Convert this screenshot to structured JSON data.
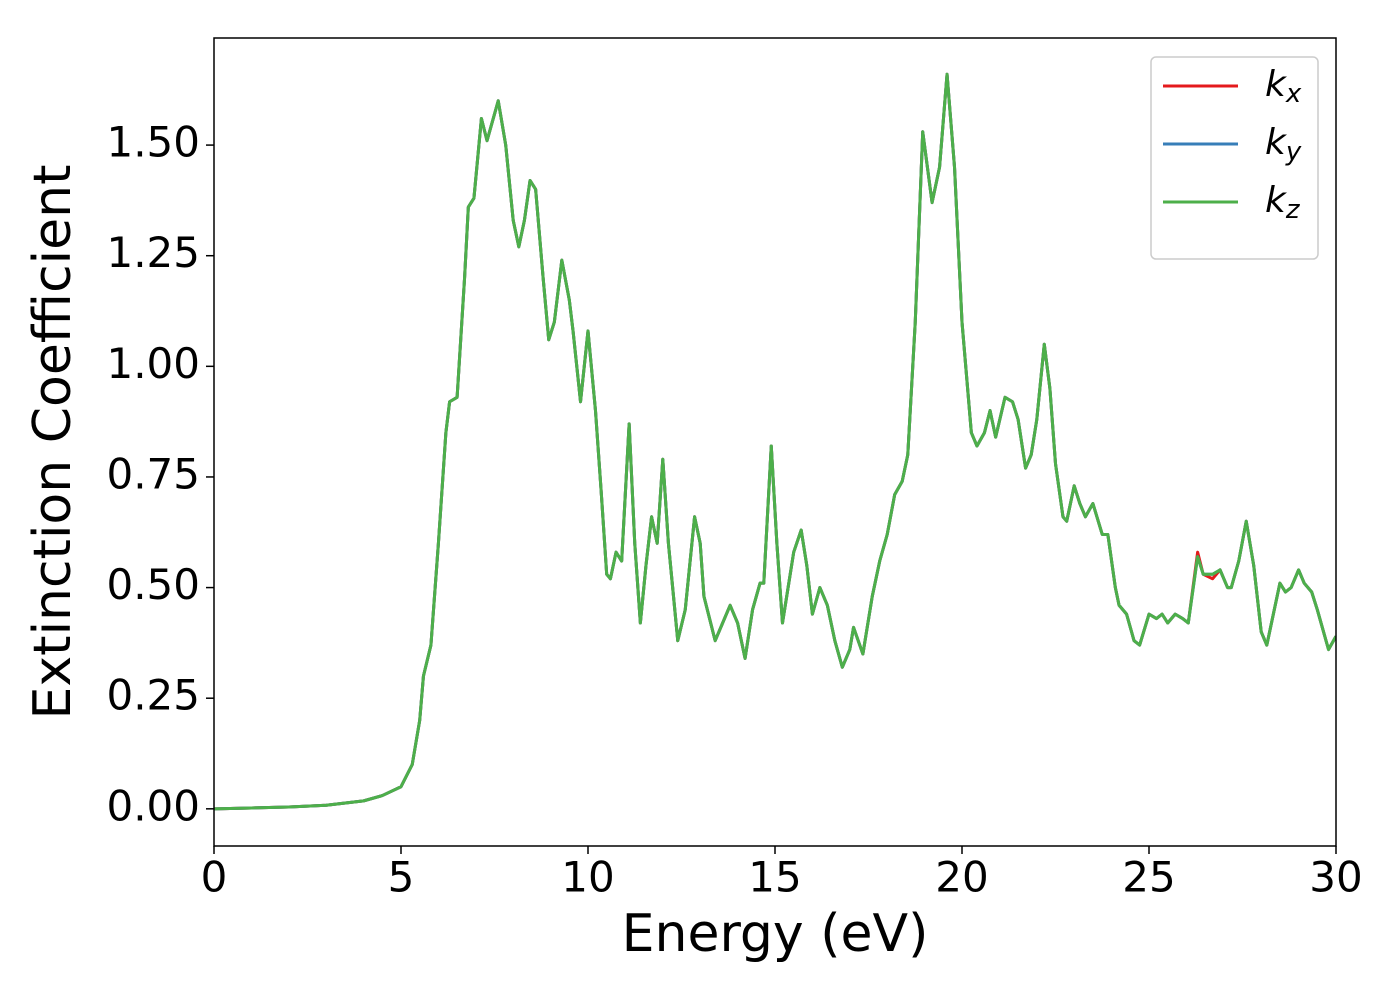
{
  "chart_data": {
    "type": "line",
    "xlabel": "Energy (eV)",
    "ylabel": "Extinction Coefficient",
    "x": [
      0,
      1,
      2,
      3,
      4,
      4.5,
      5,
      5.3,
      5.5,
      5.6,
      5.8,
      6,
      6.2,
      6.3,
      6.5,
      6.7,
      6.8,
      6.95,
      7.15,
      7.3,
      7.6,
      7.8,
      8,
      8.15,
      8.3,
      8.45,
      8.6,
      8.8,
      8.95,
      9.1,
      9.3,
      9.5,
      9.6,
      9.8,
      10,
      10.2,
      10.35,
      10.5,
      10.6,
      10.75,
      10.9,
      11.1,
      11.25,
      11.4,
      11.55,
      11.7,
      11.85,
      12,
      12.15,
      12.4,
      12.6,
      12.85,
      13,
      13.1,
      13.4,
      13.6,
      13.8,
      14,
      14.2,
      14.4,
      14.6,
      14.7,
      14.9,
      15.05,
      15.2,
      15.35,
      15.5,
      15.7,
      15.85,
      16,
      16.2,
      16.4,
      16.6,
      16.8,
      17,
      17.1,
      17.35,
      17.6,
      17.8,
      18,
      18.2,
      18.4,
      18.55,
      18.75,
      18.95,
      19.2,
      19.4,
      19.6,
      19.8,
      20,
      20.25,
      20.4,
      20.6,
      20.75,
      20.9,
      21.15,
      21.35,
      21.5,
      21.7,
      21.85,
      22,
      22.2,
      22.35,
      22.5,
      22.7,
      22.8,
      23,
      23.15,
      23.3,
      23.5,
      23.75,
      23.9,
      24.1,
      24.2,
      24.4,
      24.6,
      24.75,
      25,
      25.2,
      25.35,
      25.5,
      25.7,
      25.9,
      26.05,
      26.3,
      26.45,
      26.7,
      26.9,
      27.1,
      27.2,
      27.4,
      27.6,
      27.8,
      28,
      28.15,
      28.35,
      28.5,
      28.65,
      28.8,
      29,
      29.15,
      29.35,
      29.5,
      29.8,
      30
    ],
    "series": [
      {
        "name": "kx",
        "color": "#e41a1c",
        "values": [
          0,
          0.002,
          0.004,
          0.008,
          0.018,
          0.03,
          0.05,
          0.1,
          0.2,
          0.3,
          0.37,
          0.6,
          0.85,
          0.92,
          0.93,
          1.2,
          1.36,
          1.38,
          1.56,
          1.51,
          1.6,
          1.5,
          1.33,
          1.27,
          1.33,
          1.42,
          1.4,
          1.2,
          1.06,
          1.1,
          1.24,
          1.15,
          1.08,
          0.92,
          1.08,
          0.9,
          0.72,
          0.53,
          0.52,
          0.58,
          0.56,
          0.87,
          0.6,
          0.42,
          0.55,
          0.66,
          0.6,
          0.79,
          0.6,
          0.38,
          0.45,
          0.66,
          0.6,
          0.48,
          0.38,
          0.42,
          0.46,
          0.42,
          0.34,
          0.45,
          0.51,
          0.51,
          0.82,
          0.6,
          0.42,
          0.5,
          0.58,
          0.63,
          0.55,
          0.44,
          0.5,
          0.46,
          0.38,
          0.32,
          0.36,
          0.41,
          0.35,
          0.48,
          0.56,
          0.62,
          0.71,
          0.74,
          0.8,
          1.1,
          1.53,
          1.37,
          1.45,
          1.66,
          1.45,
          1.1,
          0.85,
          0.82,
          0.85,
          0.9,
          0.84,
          0.93,
          0.92,
          0.88,
          0.77,
          0.8,
          0.88,
          1.05,
          0.95,
          0.78,
          0.66,
          0.65,
          0.73,
          0.69,
          0.66,
          0.69,
          0.62,
          0.62,
          0.5,
          0.46,
          0.44,
          0.38,
          0.37,
          0.44,
          0.43,
          0.44,
          0.42,
          0.44,
          0.43,
          0.42,
          0.58,
          0.53,
          0.52,
          0.54,
          0.5,
          0.5,
          0.56,
          0.65,
          0.55,
          0.4,
          0.37,
          0.45,
          0.51,
          0.49,
          0.5,
          0.54,
          0.51,
          0.49,
          0.45,
          0.36,
          0.39
        ]
      },
      {
        "name": "ky",
        "color": "#377eb8",
        "values": [
          0,
          0.002,
          0.004,
          0.008,
          0.018,
          0.03,
          0.05,
          0.1,
          0.2,
          0.3,
          0.37,
          0.6,
          0.85,
          0.92,
          0.93,
          1.2,
          1.36,
          1.38,
          1.56,
          1.51,
          1.6,
          1.5,
          1.33,
          1.27,
          1.33,
          1.42,
          1.4,
          1.2,
          1.06,
          1.1,
          1.24,
          1.15,
          1.08,
          0.92,
          1.08,
          0.9,
          0.72,
          0.53,
          0.52,
          0.58,
          0.56,
          0.87,
          0.6,
          0.42,
          0.55,
          0.66,
          0.6,
          0.79,
          0.6,
          0.38,
          0.45,
          0.66,
          0.6,
          0.48,
          0.38,
          0.42,
          0.46,
          0.42,
          0.34,
          0.45,
          0.51,
          0.51,
          0.82,
          0.6,
          0.42,
          0.5,
          0.58,
          0.63,
          0.55,
          0.44,
          0.5,
          0.46,
          0.38,
          0.32,
          0.36,
          0.41,
          0.35,
          0.48,
          0.56,
          0.62,
          0.71,
          0.74,
          0.8,
          1.1,
          1.53,
          1.37,
          1.45,
          1.66,
          1.45,
          1.1,
          0.85,
          0.82,
          0.85,
          0.9,
          0.84,
          0.93,
          0.92,
          0.88,
          0.77,
          0.8,
          0.88,
          1.05,
          0.95,
          0.78,
          0.66,
          0.65,
          0.73,
          0.69,
          0.66,
          0.69,
          0.62,
          0.62,
          0.5,
          0.46,
          0.44,
          0.38,
          0.37,
          0.44,
          0.43,
          0.44,
          0.42,
          0.44,
          0.43,
          0.42,
          0.57,
          0.53,
          0.53,
          0.54,
          0.5,
          0.5,
          0.56,
          0.65,
          0.55,
          0.4,
          0.37,
          0.45,
          0.51,
          0.49,
          0.5,
          0.54,
          0.51,
          0.49,
          0.45,
          0.36,
          0.39
        ]
      },
      {
        "name": "kz",
        "color": "#4daf4a",
        "values": [
          0,
          0.002,
          0.004,
          0.008,
          0.018,
          0.03,
          0.05,
          0.1,
          0.2,
          0.3,
          0.37,
          0.6,
          0.85,
          0.92,
          0.93,
          1.2,
          1.36,
          1.38,
          1.56,
          1.51,
          1.6,
          1.5,
          1.33,
          1.27,
          1.33,
          1.42,
          1.4,
          1.2,
          1.06,
          1.1,
          1.24,
          1.15,
          1.08,
          0.92,
          1.08,
          0.9,
          0.72,
          0.53,
          0.52,
          0.58,
          0.56,
          0.87,
          0.6,
          0.42,
          0.55,
          0.66,
          0.6,
          0.79,
          0.6,
          0.38,
          0.45,
          0.66,
          0.6,
          0.48,
          0.38,
          0.42,
          0.46,
          0.42,
          0.34,
          0.45,
          0.51,
          0.51,
          0.82,
          0.6,
          0.42,
          0.5,
          0.58,
          0.63,
          0.55,
          0.44,
          0.5,
          0.46,
          0.38,
          0.32,
          0.36,
          0.41,
          0.35,
          0.48,
          0.56,
          0.62,
          0.71,
          0.74,
          0.8,
          1.1,
          1.53,
          1.37,
          1.45,
          1.66,
          1.45,
          1.1,
          0.85,
          0.82,
          0.85,
          0.9,
          0.84,
          0.93,
          0.92,
          0.88,
          0.77,
          0.8,
          0.88,
          1.05,
          0.95,
          0.78,
          0.66,
          0.65,
          0.73,
          0.69,
          0.66,
          0.69,
          0.62,
          0.62,
          0.5,
          0.46,
          0.44,
          0.38,
          0.37,
          0.44,
          0.43,
          0.44,
          0.42,
          0.44,
          0.43,
          0.42,
          0.57,
          0.53,
          0.53,
          0.54,
          0.5,
          0.5,
          0.56,
          0.65,
          0.55,
          0.4,
          0.37,
          0.45,
          0.51,
          0.49,
          0.5,
          0.54,
          0.51,
          0.49,
          0.45,
          0.36,
          0.39
        ]
      }
    ],
    "xlim": [
      0,
      30
    ],
    "xticks": [
      0,
      5,
      10,
      15,
      20,
      25,
      30
    ],
    "ylim": [
      -0.084,
      1.742
    ],
    "yticks": [
      {
        "value": 0,
        "label": "0.00"
      },
      {
        "value": 0.25,
        "label": "0.25"
      },
      {
        "value": 0.5,
        "label": "0.50"
      },
      {
        "value": 0.75,
        "label": "0.75"
      },
      {
        "value": 1,
        "label": "1.00"
      },
      {
        "value": 1.25,
        "label": "1.25"
      },
      {
        "value": 1.5,
        "label": "1.50"
      }
    ],
    "grid": false,
    "legend": "upper right"
  }
}
